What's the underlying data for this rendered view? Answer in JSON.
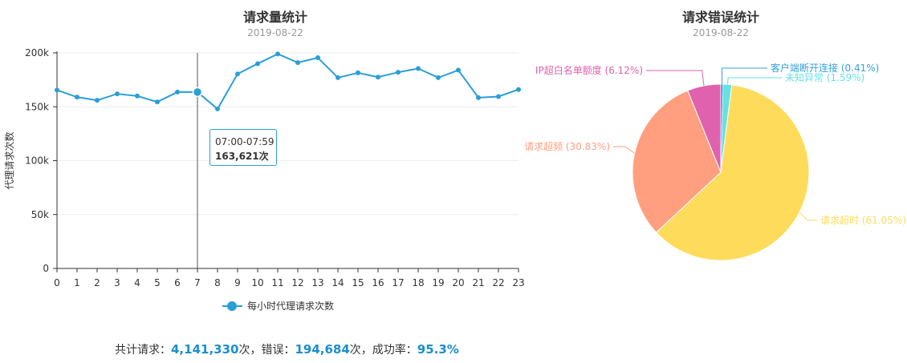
{
  "chart_data": [
    {
      "type": "line",
      "title": "请求量统计",
      "subtitle": "2019-08-22",
      "ylabel": "代理请求次数",
      "ylim": [
        0,
        200000
      ],
      "yticks": [
        "0",
        "50k",
        "100k",
        "150k",
        "200k"
      ],
      "categories": [
        "0",
        "1",
        "2",
        "3",
        "4",
        "5",
        "6",
        "7",
        "8",
        "9",
        "10",
        "11",
        "12",
        "13",
        "14",
        "15",
        "16",
        "17",
        "18",
        "19",
        "20",
        "21",
        "22",
        "23"
      ],
      "series": [
        {
          "name": "每小时代理请求次数",
          "color": "#2a9fd6",
          "values": [
            165500,
            159000,
            156000,
            162000,
            160000,
            154500,
            163621,
            163621,
            148000,
            180500,
            190000,
            199000,
            191000,
            195500,
            177000,
            181500,
            177500,
            182000,
            185500,
            177000,
            184000,
            158500,
            159500,
            166000
          ]
        }
      ],
      "tooltip": {
        "label": "07:00-07:59",
        "value": "163,621次",
        "index": 7
      },
      "grid": true
    },
    {
      "type": "pie",
      "title": "请求错误统计",
      "subtitle": "2019-08-22",
      "slices": [
        {
          "label": "请求超时 (61.05%)",
          "value": 61.05,
          "color": "#ffdb5c"
        },
        {
          "label": "请求超频 (30.83%)",
          "value": 30.83,
          "color": "#ff9f7f"
        },
        {
          "label": "IP超白名单额度 (6.12%)",
          "value": 6.12,
          "color": "#e062ae"
        },
        {
          "label": "客户端断开连接 (0.41%)",
          "value": 0.41,
          "color": "#37a2da"
        },
        {
          "label": "未知异常 (1.59%)",
          "value": 1.59,
          "color": "#67e0e3"
        }
      ]
    }
  ],
  "summary": {
    "total_label": "共计请求：",
    "total_value": "4,141,330",
    "total_unit": "次，错误：",
    "error_value": "194,684",
    "error_unit": "次，成功率：",
    "rate_value": "95.3%"
  }
}
